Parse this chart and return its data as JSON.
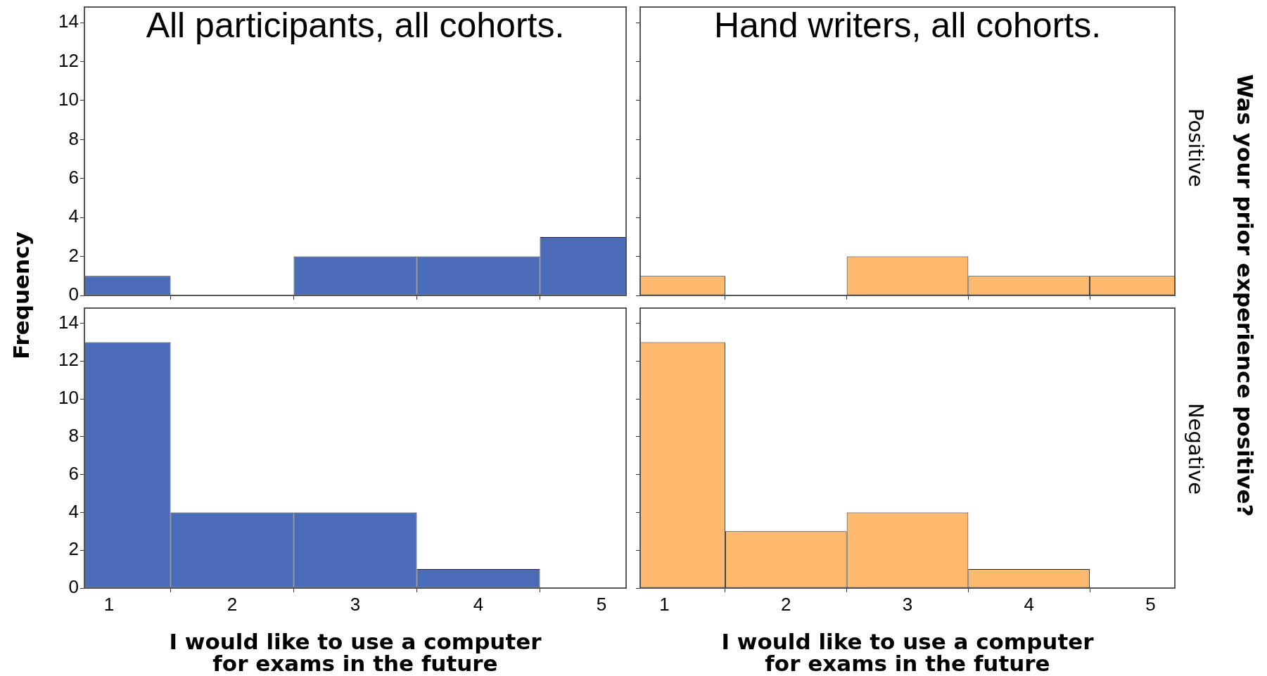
{
  "chart_data": [
    {
      "type": "histogram",
      "title": "All participants, all cohorts.",
      "ylabel": "Frequency",
      "bins": [
        0.8,
        1.5,
        2.5,
        3.5,
        4.5,
        5.2
      ],
      "values": [
        1,
        0,
        2,
        2,
        3
      ],
      "color": "#4a6cb8",
      "xlim": [
        0.8,
        5.2
      ],
      "xticks": [
        1,
        2,
        3,
        4,
        5
      ],
      "ylim": [
        0,
        14.8
      ],
      "yticks": [
        0,
        2,
        4,
        6,
        8,
        10,
        12,
        14
      ],
      "tick_labels": "y"
    },
    {
      "type": "histogram",
      "title": "Hand writers, all cohorts.",
      "y2label": "Was your prior experience positive?",
      "annotations": [
        "Positive"
      ],
      "bins": [
        0.8,
        1.5,
        2.5,
        3.5,
        4.5,
        5.2
      ],
      "values": [
        1,
        0,
        2,
        1,
        1
      ],
      "color": "#fdb96e",
      "xlim": [
        0.8,
        5.2
      ],
      "xticks": [
        1,
        2,
        3,
        4,
        5
      ],
      "ylim": [
        0,
        14.8
      ],
      "yticks": [
        0,
        2,
        4,
        6,
        8,
        10,
        12,
        14
      ],
      "tick_labels": false
    },
    {
      "type": "histogram",
      "xlabel": "I would like to use a computer for exams in the future",
      "bins": [
        0.8,
        1.5,
        2.5,
        3.5,
        4.5
      ],
      "values": [
        13,
        4,
        4,
        1
      ],
      "color": "#4a6cb8",
      "xlim": [
        0.8,
        5.2
      ],
      "xticks": [
        1,
        2,
        3,
        4,
        5
      ],
      "ylim": [
        0,
        14.8
      ],
      "yticks": [
        0,
        2,
        4,
        6,
        8,
        10,
        12,
        14
      ]
    },
    {
      "type": "histogram",
      "xlabel": "I would like to use a computer for exams in the future",
      "annotations": [
        "Negative"
      ],
      "bins": [
        0.8,
        1.5,
        2.5,
        3.5,
        4.5
      ],
      "values": [
        13,
        3,
        4,
        1
      ],
      "color": "#fdb96e",
      "xlim": [
        0.8,
        5.2
      ],
      "xticks": [
        1,
        2,
        3,
        4,
        5
      ],
      "ylim": [
        0,
        14.8
      ],
      "yticks": [
        0,
        2,
        4,
        6,
        8,
        10,
        12,
        14
      ],
      "tick_labels": "x"
    }
  ]
}
